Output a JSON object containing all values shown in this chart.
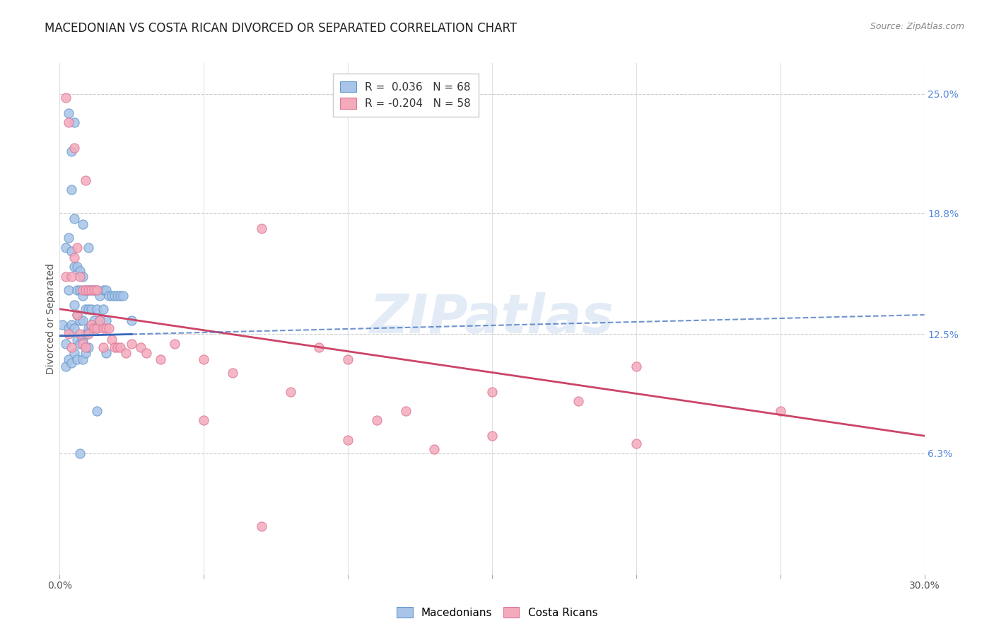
{
  "title": "MACEDONIAN VS COSTA RICAN DIVORCED OR SEPARATED CORRELATION CHART",
  "source": "Source: ZipAtlas.com",
  "ylabel": "Divorced or Separated",
  "watermark": "ZIPatlas",
  "x_min": 0.0,
  "x_max": 0.3,
  "y_min": 0.0,
  "y_max": 0.266,
  "x_ticks": [
    0.0,
    0.05,
    0.1,
    0.15,
    0.2,
    0.25,
    0.3
  ],
  "x_tick_labels": [
    "0.0%",
    "",
    "",
    "",
    "",
    "",
    "30.0%"
  ],
  "y_tick_labels_right": [
    "25.0%",
    "18.8%",
    "12.5%",
    "6.3%"
  ],
  "y_ticks_right": [
    0.25,
    0.188,
    0.125,
    0.063
  ],
  "legend_blue_label": "R =  0.036   N = 68",
  "legend_pink_label": "R = -0.204   N = 58",
  "blue_fill": "#a8c4e8",
  "pink_fill": "#f4aabb",
  "blue_edge": "#6699cc",
  "pink_edge": "#dd7799",
  "blue_line_color": "#3366bb",
  "pink_line_color": "#cc4466",
  "grid_color": "#cccccc",
  "background_color": "#ffffff",
  "title_fontsize": 12,
  "axis_label_fontsize": 10,
  "tick_fontsize": 10,
  "blue_scatter_x": [
    0.001,
    0.002,
    0.002,
    0.002,
    0.003,
    0.003,
    0.003,
    0.003,
    0.004,
    0.004,
    0.004,
    0.004,
    0.005,
    0.005,
    0.005,
    0.005,
    0.005,
    0.006,
    0.006,
    0.006,
    0.006,
    0.006,
    0.007,
    0.007,
    0.007,
    0.007,
    0.008,
    0.008,
    0.008,
    0.008,
    0.008,
    0.009,
    0.009,
    0.009,
    0.009,
    0.01,
    0.01,
    0.01,
    0.01,
    0.011,
    0.011,
    0.011,
    0.012,
    0.012,
    0.013,
    0.013,
    0.013,
    0.014,
    0.014,
    0.015,
    0.015,
    0.016,
    0.016,
    0.017,
    0.018,
    0.019,
    0.02,
    0.021,
    0.022,
    0.003,
    0.004,
    0.005,
    0.008,
    0.025,
    0.016,
    0.013,
    0.01,
    0.007
  ],
  "blue_scatter_y": [
    0.13,
    0.17,
    0.12,
    0.108,
    0.175,
    0.148,
    0.128,
    0.112,
    0.2,
    0.168,
    0.13,
    0.11,
    0.185,
    0.16,
    0.14,
    0.128,
    0.115,
    0.16,
    0.148,
    0.135,
    0.122,
    0.112,
    0.158,
    0.148,
    0.132,
    0.12,
    0.155,
    0.145,
    0.132,
    0.122,
    0.112,
    0.148,
    0.138,
    0.125,
    0.115,
    0.148,
    0.138,
    0.128,
    0.118,
    0.148,
    0.138,
    0.128,
    0.148,
    0.132,
    0.148,
    0.138,
    0.128,
    0.145,
    0.132,
    0.148,
    0.138,
    0.148,
    0.132,
    0.145,
    0.145,
    0.145,
    0.145,
    0.145,
    0.145,
    0.24,
    0.22,
    0.235,
    0.182,
    0.132,
    0.115,
    0.085,
    0.17,
    0.063
  ],
  "pink_scatter_x": [
    0.002,
    0.002,
    0.003,
    0.003,
    0.004,
    0.004,
    0.005,
    0.006,
    0.006,
    0.007,
    0.007,
    0.008,
    0.008,
    0.009,
    0.009,
    0.01,
    0.01,
    0.011,
    0.011,
    0.012,
    0.012,
    0.013,
    0.013,
    0.014,
    0.015,
    0.015,
    0.016,
    0.017,
    0.018,
    0.019,
    0.02,
    0.021,
    0.023,
    0.025,
    0.028,
    0.03,
    0.035,
    0.04,
    0.05,
    0.06,
    0.07,
    0.08,
    0.09,
    0.1,
    0.11,
    0.12,
    0.13,
    0.15,
    0.18,
    0.2,
    0.25,
    0.05,
    0.07,
    0.1,
    0.15,
    0.2,
    0.005,
    0.009
  ],
  "pink_scatter_y": [
    0.248,
    0.155,
    0.235,
    0.125,
    0.155,
    0.118,
    0.165,
    0.17,
    0.135,
    0.155,
    0.125,
    0.148,
    0.12,
    0.148,
    0.118,
    0.148,
    0.125,
    0.148,
    0.13,
    0.148,
    0.128,
    0.148,
    0.128,
    0.132,
    0.128,
    0.118,
    0.128,
    0.128,
    0.122,
    0.118,
    0.118,
    0.118,
    0.115,
    0.12,
    0.118,
    0.115,
    0.112,
    0.12,
    0.112,
    0.105,
    0.025,
    0.095,
    0.118,
    0.112,
    0.08,
    0.085,
    0.065,
    0.095,
    0.09,
    0.108,
    0.085,
    0.08,
    0.18,
    0.07,
    0.072,
    0.068,
    0.222,
    0.205
  ],
  "blue_line_x": [
    0.0,
    0.3
  ],
  "blue_line_y_start": 0.124,
  "blue_line_y_end": 0.135,
  "pink_line_x": [
    0.0,
    0.3
  ],
  "pink_line_y_start": 0.138,
  "pink_line_y_end": 0.072
}
